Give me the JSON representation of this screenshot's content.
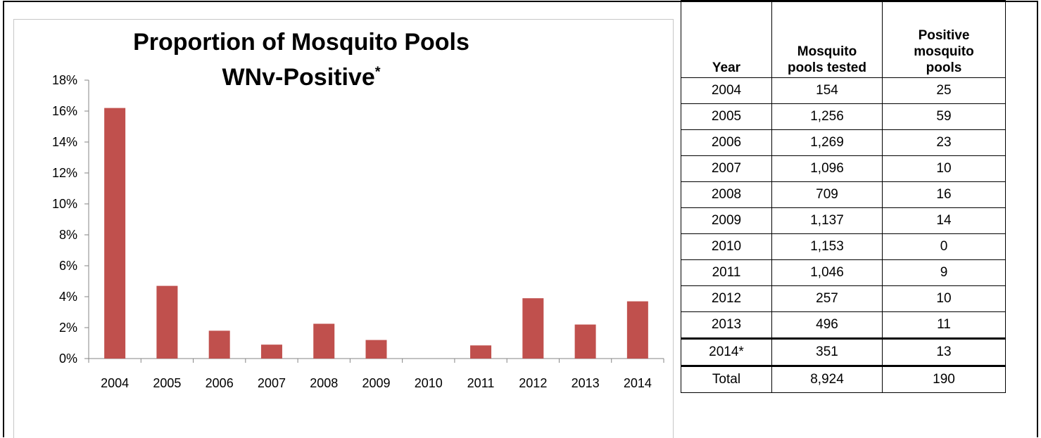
{
  "chart_data": {
    "type": "bar",
    "title": "Proportion of Mosquito Pools",
    "title_line2": "WNv-Positive",
    "title_footnote_mark": "*",
    "categories": [
      "2004",
      "2005",
      "2006",
      "2007",
      "2008",
      "2009",
      "2010",
      "2011",
      "2012",
      "2013",
      "2014"
    ],
    "values": [
      16.2,
      4.7,
      1.8,
      0.9,
      2.25,
      1.2,
      0.0,
      0.85,
      3.9,
      2.2,
      3.7
    ],
    "ylim": [
      0,
      18
    ],
    "yticks": [
      0,
      2,
      4,
      6,
      8,
      10,
      12,
      14,
      16,
      18
    ],
    "ytick_labels": [
      "0%",
      "2%",
      "4%",
      "6%",
      "8%",
      "10%",
      "12%",
      "14%",
      "16%",
      "18%"
    ],
    "bar_color": "#c0504d",
    "grid": false,
    "legend": "none"
  },
  "table": {
    "headers": {
      "year": "Year",
      "tested_line1": "Mosquito",
      "tested_line2": "pools tested",
      "positive_line1": "Positive",
      "positive_line2": "mosquito",
      "positive_line3": "pools"
    },
    "rows": [
      {
        "year": "2004",
        "tested": "154",
        "positive": "25"
      },
      {
        "year": "2005",
        "tested": "1,256",
        "positive": "59"
      },
      {
        "year": "2006",
        "tested": "1,269",
        "positive": "23"
      },
      {
        "year": "2007",
        "tested": "1,096",
        "positive": "10"
      },
      {
        "year": "2008",
        "tested": "709",
        "positive": "16"
      },
      {
        "year": "2009",
        "tested": "1,137",
        "positive": "14"
      },
      {
        "year": "2010",
        "tested": "1,153",
        "positive": "0"
      },
      {
        "year": "2011",
        "tested": "1,046",
        "positive": "9"
      },
      {
        "year": "2012",
        "tested": "257",
        "positive": "10"
      },
      {
        "year": "2013",
        "tested": "496",
        "positive": "11"
      },
      {
        "year": "2014*",
        "tested": "351",
        "positive": "13"
      }
    ],
    "total": {
      "label": "Total",
      "tested": "8,924",
      "positive": "190"
    }
  }
}
